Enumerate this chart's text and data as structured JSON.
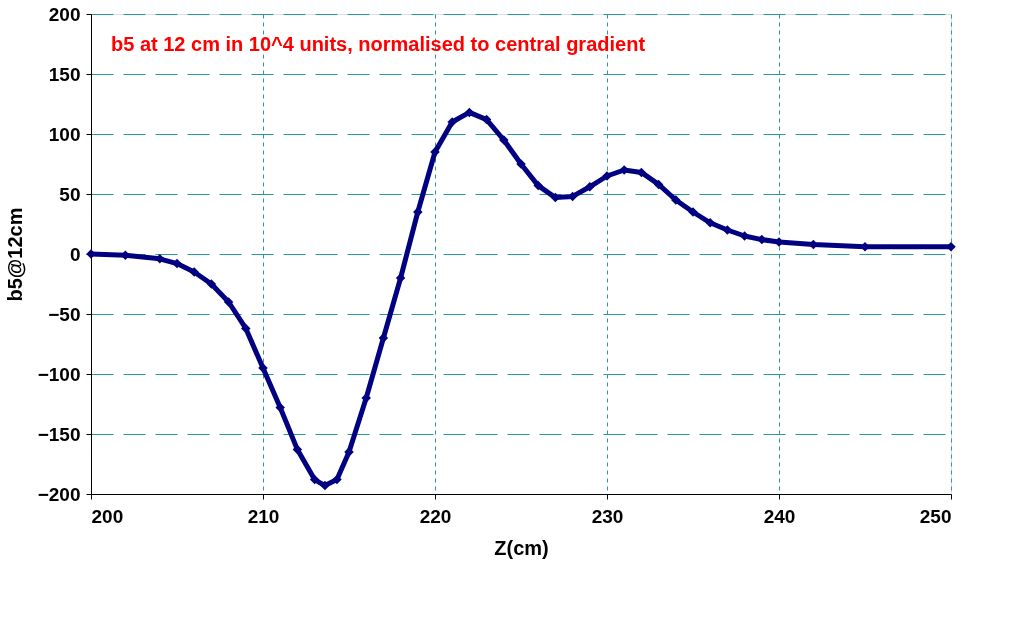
{
  "chart_data": {
    "type": "line",
    "xlabel": "Z(cm)",
    "ylabel": "b5@12cm",
    "annotations": [
      "b5 at 12 cm in 10^4 units, normalised to central gradient"
    ],
    "x": [
      200,
      202,
      204,
      205,
      206,
      207,
      208,
      209,
      210,
      211,
      212,
      213,
      213.6,
      214.3,
      215,
      216,
      217,
      218,
      219,
      220,
      221,
      222,
      223,
      224,
      225,
      226,
      227,
      228,
      229,
      230,
      231,
      232,
      233,
      234,
      235,
      236,
      237,
      238,
      239,
      240,
      242,
      245,
      250
    ],
    "series": [
      {
        "color": "#000080",
        "values": [
          0,
          -1,
          -4,
          -8,
          -15,
          -25,
          -40,
          -62,
          -95,
          -128,
          -163,
          -188,
          -193,
          -188,
          -165,
          -120,
          -70,
          -20,
          35,
          85,
          110,
          118,
          112,
          95,
          75,
          57,
          47,
          48,
          56,
          65,
          70,
          68,
          58,
          45,
          35,
          26,
          20,
          15,
          12,
          10,
          8,
          6,
          6
        ]
      }
    ],
    "xlim": [
      200,
      250
    ],
    "xticks": [
      200,
      210,
      220,
      230,
      240,
      250
    ],
    "ylim": [
      -200,
      200
    ],
    "yticks": [
      -200,
      -150,
      -100,
      -50,
      0,
      50,
      100,
      150,
      200
    ],
    "grid": true,
    "marker": "diamond",
    "line_style": "solid"
  }
}
